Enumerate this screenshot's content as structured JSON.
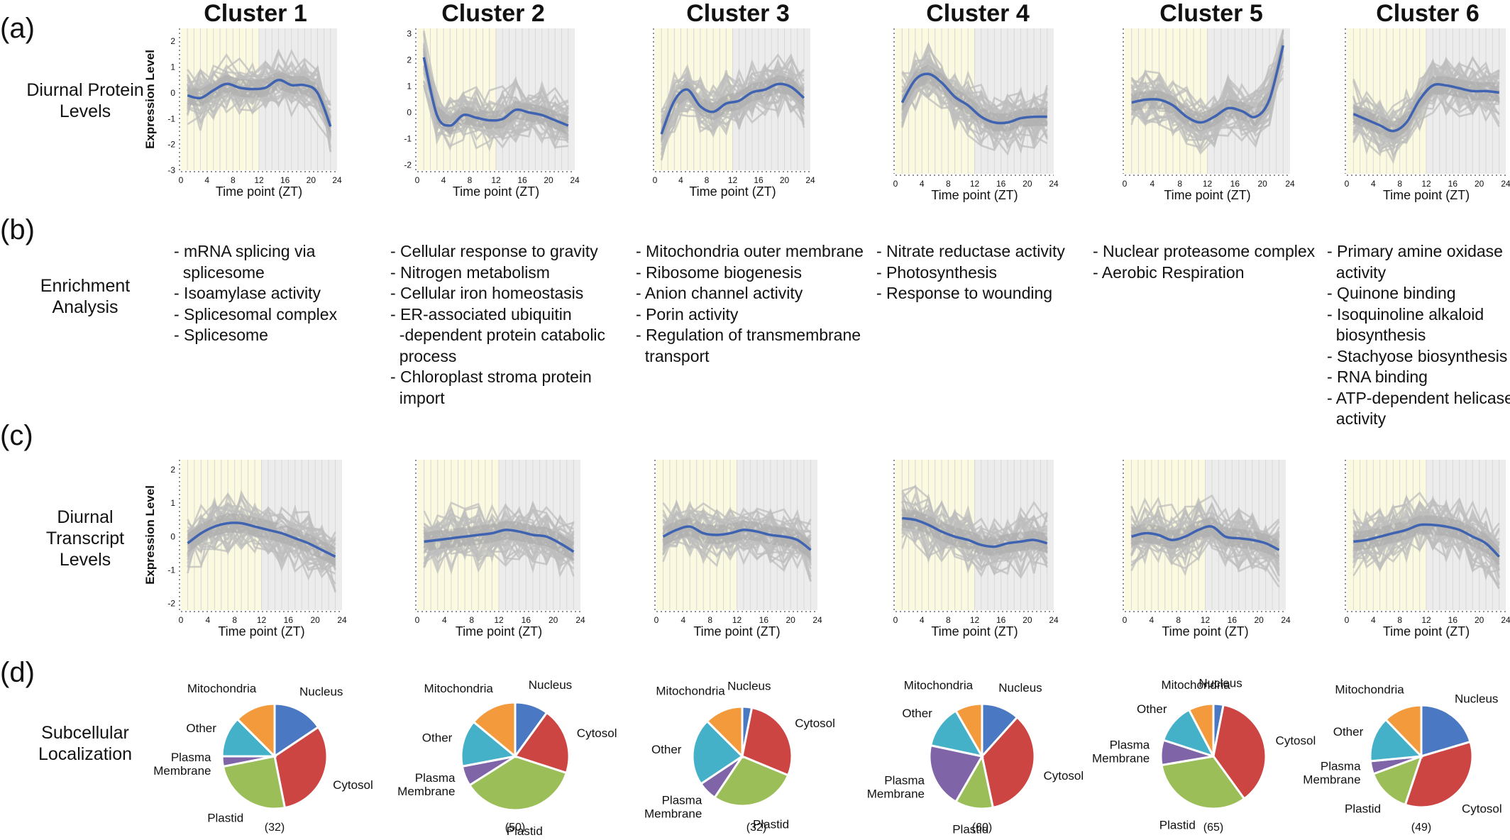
{
  "panel_letters": [
    "(a)",
    "(b)",
    "(c)",
    "(d)"
  ],
  "row_labels": {
    "protein": [
      "Diurnal Protein",
      "Levels"
    ],
    "enrichment": [
      "Enrichment",
      "Analysis"
    ],
    "transcript": [
      "Diurnal",
      "Transcript",
      "Levels"
    ],
    "subcellular": [
      "Subcellular",
      "Localization"
    ]
  },
  "clusters": [
    {
      "title": "Cluster 1",
      "enrichment": [
        "- mRNA splicing via",
        "  splicesome",
        "- Isoamylase activity",
        "- Splicesomal complex",
        "- Splicesome"
      ],
      "count": "(32)"
    },
    {
      "title": "Cluster 2",
      "enrichment": [
        "- Cellular response to gravity",
        "- Nitrogen metabolism",
        "- Cellular iron homeostasis",
        "- ER-associated ubiquitin",
        "  -dependent protein catabolic",
        "  process",
        "- Chloroplast stroma protein",
        "  import"
      ],
      "count": "(50)"
    },
    {
      "title": "Cluster 3",
      "enrichment": [
        "- Mitochondria outer membrane",
        "- Ribosome biogenesis",
        "- Anion channel activity",
        "- Porin activity",
        "- Regulation of transmembrane",
        "  transport"
      ],
      "count": "(32)"
    },
    {
      "title": "Cluster 4",
      "enrichment": [
        "- Nitrate reductase activity",
        "- Photosynthesis",
        "- Response to wounding"
      ],
      "count": "(60)"
    },
    {
      "title": "Cluster 5",
      "enrichment": [
        "- Nuclear proteasome complex",
        "- Aerobic Respiration"
      ],
      "count": "(65)"
    },
    {
      "title": "Cluster 6",
      "enrichment": [
        "- Primary amine oxidase",
        "  activity",
        "- Quinone binding",
        "- Isoquinoline alkaloid",
        "  biosynthesis",
        "- Stachyose biosynthesis",
        "- RNA binding",
        "- ATP-dependent helicase",
        "  activity"
      ],
      "count": "(49)"
    }
  ],
  "colors": {
    "trend": "#3f63b0",
    "individual": "#bdbdbd",
    "light_band": "#fbf9df",
    "dark_band": "#ececec",
    "nucleus": "#4a78c2",
    "cytosol": "#cc4543",
    "plastid": "#9bbe58",
    "plasma_membrane": "#7f64a8",
    "other": "#45b1c9",
    "mitochondria": "#f39a3d"
  },
  "chart_data": [
    {
      "type": "line",
      "panel": "a",
      "cluster": "Cluster 1",
      "xlabel": "Time point (ZT)",
      "ylabel": "Expression Level",
      "xlim": [
        0,
        24
      ],
      "ylim": [
        -3,
        2.5
      ],
      "yticks": [
        -3,
        -2,
        -1,
        0,
        1,
        2
      ],
      "xticks": [
        0,
        4,
        8,
        12,
        16,
        20,
        24
      ],
      "light_period": [
        0,
        12
      ],
      "dark_period": [
        12,
        24
      ],
      "trend": {
        "x": [
          1,
          3,
          5,
          7,
          9,
          11,
          13,
          15,
          17,
          19,
          21,
          23
        ],
        "y": [
          -0.1,
          -0.2,
          0.1,
          0.35,
          0.2,
          0.15,
          0.2,
          0.5,
          0.3,
          0.3,
          0.0,
          -1.3
        ]
      }
    },
    {
      "type": "line",
      "panel": "a",
      "cluster": "Cluster 2",
      "xlabel": "Time point (ZT)",
      "ylabel": "",
      "xlim": [
        0,
        24
      ],
      "ylim": [
        -2.2,
        3.2
      ],
      "yticks": [
        -2,
        -1,
        0,
        1,
        2,
        3
      ],
      "xticks": [
        0,
        4,
        8,
        12,
        16,
        20,
        24
      ],
      "light_period": [
        0,
        12
      ],
      "dark_period": [
        12,
        24
      ],
      "trend": {
        "x": [
          1,
          3,
          5,
          7,
          9,
          11,
          13,
          15,
          17,
          19,
          21,
          23
        ],
        "y": [
          2.1,
          -0.1,
          -0.5,
          -0.1,
          -0.2,
          -0.3,
          -0.25,
          0.1,
          0.0,
          -0.1,
          -0.3,
          -0.5
        ]
      }
    },
    {
      "type": "line",
      "panel": "a",
      "cluster": "Cluster 3",
      "xlabel": "Time point (ZT)",
      "ylabel": "",
      "xlim": [
        0,
        24
      ],
      "ylim": [
        -2.3,
        2.8
      ],
      "yticks": [],
      "xticks": [
        0,
        4,
        8,
        12,
        16,
        20,
        24
      ],
      "light_period": [
        0,
        12
      ],
      "dark_period": [
        12,
        24
      ],
      "trend": {
        "x": [
          1,
          3,
          5,
          7,
          9,
          11,
          13,
          15,
          17,
          19,
          21,
          23
        ],
        "y": [
          -1.0,
          0.2,
          0.6,
          0.0,
          -0.2,
          0.1,
          0.2,
          0.5,
          0.6,
          0.8,
          0.7,
          0.3
        ]
      }
    },
    {
      "type": "line",
      "panel": "a",
      "cluster": "Cluster 4",
      "xlabel": "Time point (ZT)",
      "ylabel": "",
      "xlim": [
        0,
        24
      ],
      "ylim": [
        -2.3,
        2.8
      ],
      "yticks": [],
      "xticks": [
        0,
        4,
        8,
        12,
        16,
        20,
        24
      ],
      "light_period": [
        0,
        12
      ],
      "dark_period": [
        12,
        24
      ],
      "trend": {
        "x": [
          1,
          3,
          5,
          7,
          9,
          11,
          13,
          15,
          17,
          19,
          21,
          23
        ],
        "y": [
          0.2,
          1.0,
          1.2,
          0.9,
          0.4,
          0.1,
          -0.3,
          -0.5,
          -0.5,
          -0.35,
          -0.3,
          -0.3
        ]
      }
    },
    {
      "type": "line",
      "panel": "a",
      "cluster": "Cluster 5",
      "xlabel": "Time point (ZT)",
      "ylabel": "",
      "xlim": [
        0,
        24
      ],
      "ylim": [
        -2.3,
        2.8
      ],
      "yticks": [],
      "xticks": [
        0,
        4,
        8,
        12,
        16,
        20,
        24
      ],
      "light_period": [
        0,
        12
      ],
      "dark_period": [
        12,
        24
      ],
      "trend": {
        "x": [
          1,
          3,
          5,
          7,
          9,
          11,
          13,
          15,
          17,
          19,
          21,
          23
        ],
        "y": [
          0.2,
          0.3,
          0.3,
          0.1,
          -0.3,
          -0.5,
          -0.3,
          0.0,
          -0.1,
          -0.3,
          0.3,
          2.2
        ]
      }
    },
    {
      "type": "line",
      "panel": "a",
      "cluster": "Cluster 6",
      "xlabel": "Time point (ZT)",
      "ylabel": "",
      "xlim": [
        0,
        24
      ],
      "ylim": [
        -2.3,
        2.8
      ],
      "yticks": [],
      "xticks": [
        0,
        4,
        8,
        12,
        16,
        20,
        24
      ],
      "light_period": [
        0,
        12
      ],
      "dark_period": [
        12,
        24
      ],
      "trend": {
        "x": [
          1,
          3,
          5,
          7,
          9,
          11,
          13,
          15,
          17,
          19,
          21,
          23
        ],
        "y": [
          -0.2,
          -0.4,
          -0.6,
          -0.8,
          -0.5,
          0.3,
          0.8,
          0.8,
          0.7,
          0.6,
          0.6,
          0.55
        ]
      }
    },
    {
      "type": "line",
      "panel": "c",
      "cluster": "Cluster 1",
      "xlabel": "Time point (ZT)",
      "ylabel": "Expression Level",
      "xlim": [
        0,
        24
      ],
      "ylim": [
        -2.2,
        2.3
      ],
      "yticks": [
        -2,
        -1,
        0,
        1,
        2
      ],
      "xticks": [
        0,
        4,
        8,
        12,
        16,
        20,
        24
      ],
      "light_period": [
        0,
        12
      ],
      "dark_period": [
        12,
        24
      ],
      "trend": {
        "x": [
          1,
          3,
          5,
          7,
          9,
          11,
          13,
          15,
          17,
          19,
          21,
          23
        ],
        "y": [
          -0.2,
          0.1,
          0.3,
          0.4,
          0.4,
          0.3,
          0.2,
          0.1,
          -0.05,
          -0.2,
          -0.4,
          -0.6
        ]
      }
    },
    {
      "type": "line",
      "panel": "c",
      "cluster": "Cluster 2",
      "xlabel": "Time point (ZT)",
      "ylabel": "",
      "xlim": [
        0,
        24
      ],
      "ylim": [
        -2.2,
        2.3
      ],
      "yticks": [],
      "xticks": [
        0,
        4,
        8,
        12,
        16,
        20,
        24
      ],
      "light_period": [
        0,
        12
      ],
      "dark_period": [
        12,
        24
      ],
      "trend": {
        "x": [
          1,
          3,
          5,
          7,
          9,
          11,
          13,
          15,
          17,
          19,
          21,
          23
        ],
        "y": [
          -0.15,
          -0.1,
          -0.05,
          0.0,
          0.05,
          0.1,
          0.2,
          0.15,
          0.05,
          0.0,
          -0.2,
          -0.45
        ]
      }
    },
    {
      "type": "line",
      "panel": "c",
      "cluster": "Cluster 3",
      "xlabel": "Time point (ZT)",
      "ylabel": "",
      "xlim": [
        0,
        24
      ],
      "ylim": [
        -2.2,
        2.3
      ],
      "yticks": [],
      "xticks": [
        0,
        4,
        8,
        12,
        16,
        20,
        24
      ],
      "light_period": [
        0,
        12
      ],
      "dark_period": [
        12,
        24
      ],
      "trend": {
        "x": [
          1,
          3,
          5,
          7,
          9,
          11,
          13,
          15,
          17,
          19,
          21,
          23
        ],
        "y": [
          0.0,
          0.2,
          0.3,
          0.1,
          0.05,
          0.1,
          0.2,
          0.15,
          0.05,
          0.0,
          -0.1,
          -0.4
        ]
      }
    },
    {
      "type": "line",
      "panel": "c",
      "cluster": "Cluster 4",
      "xlabel": "Time point (ZT)",
      "ylabel": "",
      "xlim": [
        0,
        24
      ],
      "ylim": [
        -2.2,
        2.3
      ],
      "yticks": [],
      "xticks": [
        0,
        4,
        8,
        12,
        16,
        20,
        24
      ],
      "light_period": [
        0,
        12
      ],
      "dark_period": [
        12,
        24
      ],
      "trend": {
        "x": [
          1,
          3,
          5,
          7,
          9,
          11,
          13,
          15,
          17,
          19,
          21,
          23
        ],
        "y": [
          0.55,
          0.5,
          0.35,
          0.15,
          0.0,
          -0.1,
          -0.25,
          -0.3,
          -0.2,
          -0.15,
          -0.1,
          -0.2
        ]
      }
    },
    {
      "type": "line",
      "panel": "c",
      "cluster": "Cluster 5",
      "xlabel": "Time point (ZT)",
      "ylabel": "",
      "xlim": [
        0,
        24
      ],
      "ylim": [
        -2.2,
        2.3
      ],
      "yticks": [],
      "xticks": [
        0,
        4,
        8,
        12,
        16,
        20,
        24
      ],
      "light_period": [
        0,
        12
      ],
      "dark_period": [
        12,
        24
      ],
      "trend": {
        "x": [
          1,
          3,
          5,
          7,
          9,
          11,
          13,
          15,
          17,
          19,
          21,
          23
        ],
        "y": [
          0.0,
          0.1,
          0.05,
          -0.1,
          0.0,
          0.2,
          0.3,
          0.0,
          -0.05,
          -0.1,
          -0.2,
          -0.4
        ]
      }
    },
    {
      "type": "line",
      "panel": "c",
      "cluster": "Cluster 6",
      "xlabel": "Time point (ZT)",
      "ylabel": "",
      "xlim": [
        0,
        24
      ],
      "ylim": [
        -2.2,
        2.3
      ],
      "yticks": [],
      "xticks": [
        0,
        4,
        8,
        12,
        16,
        20,
        24
      ],
      "light_period": [
        0,
        12
      ],
      "dark_period": [
        12,
        24
      ],
      "trend": {
        "x": [
          1,
          3,
          5,
          7,
          9,
          11,
          13,
          15,
          17,
          19,
          21,
          23
        ],
        "y": [
          -0.15,
          -0.1,
          0.0,
          0.1,
          0.2,
          0.35,
          0.35,
          0.3,
          0.2,
          0.0,
          -0.2,
          -0.6
        ]
      }
    },
    {
      "type": "pie",
      "panel": "d",
      "cluster": "Cluster 1",
      "n": 32,
      "slices": [
        {
          "label": "Nucleus",
          "value": 5
        },
        {
          "label": "Cytosol",
          "value": 10
        },
        {
          "label": "Plastid",
          "value": 8
        },
        {
          "label": "Plasma Membrane",
          "value": 1
        },
        {
          "label": "Other",
          "value": 4
        },
        {
          "label": "Mitochondria",
          "value": 4
        }
      ]
    },
    {
      "type": "pie",
      "panel": "d",
      "cluster": "Cluster 2",
      "n": 50,
      "slices": [
        {
          "label": "Nucleus",
          "value": 5
        },
        {
          "label": "Cytosol",
          "value": 10
        },
        {
          "label": "Plastid",
          "value": 18
        },
        {
          "label": "Plasma Membrane",
          "value": 3
        },
        {
          "label": "Other",
          "value": 7
        },
        {
          "label": "Mitochondria",
          "value": 7
        }
      ]
    },
    {
      "type": "pie",
      "panel": "d",
      "cluster": "Cluster 3",
      "n": 32,
      "slices": [
        {
          "label": "Nucleus",
          "value": 1
        },
        {
          "label": "Cytosol",
          "value": 9
        },
        {
          "label": "Plastid",
          "value": 9
        },
        {
          "label": "Plasma Membrane",
          "value": 2
        },
        {
          "label": "Other",
          "value": 7
        },
        {
          "label": "Mitochondria",
          "value": 4
        }
      ]
    },
    {
      "type": "pie",
      "panel": "d",
      "cluster": "Cluster 4",
      "n": 60,
      "slices": [
        {
          "label": "Nucleus",
          "value": 7
        },
        {
          "label": "Cytosol",
          "value": 21
        },
        {
          "label": "Plastid",
          "value": 7
        },
        {
          "label": "Plasma Membrane",
          "value": 12
        },
        {
          "label": "Other",
          "value": 8
        },
        {
          "label": "Mitochondria",
          "value": 5
        }
      ]
    },
    {
      "type": "pie",
      "panel": "d",
      "cluster": "Cluster 5",
      "n": 65,
      "slices": [
        {
          "label": "Nucleus",
          "value": 2
        },
        {
          "label": "Cytosol",
          "value": 24
        },
        {
          "label": "Plastid",
          "value": 21
        },
        {
          "label": "Plasma Membrane",
          "value": 5
        },
        {
          "label": "Other",
          "value": 8
        },
        {
          "label": "Mitochondria",
          "value": 5
        }
      ]
    },
    {
      "type": "pie",
      "panel": "d",
      "cluster": "Cluster 6",
      "n": 49,
      "slices": [
        {
          "label": "Nucleus",
          "value": 10
        },
        {
          "label": "Cytosol",
          "value": 17
        },
        {
          "label": "Plastid",
          "value": 7
        },
        {
          "label": "Plasma Membrane",
          "value": 2
        },
        {
          "label": "Other",
          "value": 7
        },
        {
          "label": "Mitochondria",
          "value": 6
        }
      ]
    }
  ]
}
